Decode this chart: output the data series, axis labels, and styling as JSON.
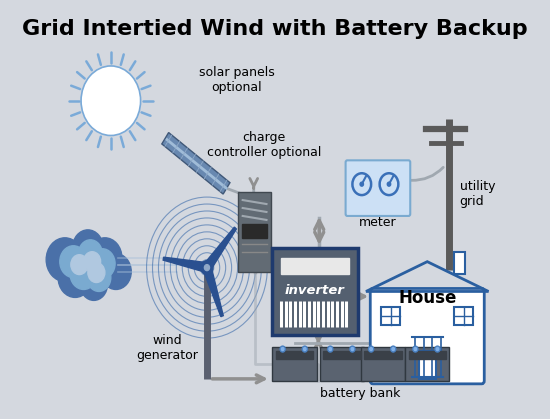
{
  "title": "Grid Intertied Wind with Battery Backup",
  "title_fontsize": 16,
  "bg_color": "#d4d8df",
  "text_color": "#000000",
  "cc": {
    "charge_controller": "#626b74",
    "charge_controller_dark": "#2a2a2a",
    "inverter_box": "#546070",
    "inverter_border": "#1e3a6e",
    "inverter_screen": "#e8e8e8",
    "meter_box": "#cce0f5",
    "meter_border": "#7aaad0",
    "battery": "#5a6370",
    "battery_dark": "#3a4048",
    "arrow": "#909090",
    "arrow_fill": "#909090",
    "house_outline": "#2a5fa0",
    "house_fill": "#ffffff",
    "sun_fill": "#ffffff",
    "sun_rays": "#7aaad8",
    "sun_outline": "#7aaad8",
    "solar_panel_main": "#6888b0",
    "solar_panel_light": "#a0bcd8",
    "solar_panel_frame": "#c0c8d0",
    "wind_blade": "#2a5090",
    "wind_circle": "#3a6aaa",
    "cloud_dark": "#4a70a8",
    "cloud_mid": "#7aaad0",
    "cloud_light": "#b0c8e0",
    "utility_pole": "#5a5a5a",
    "wire": "#a0a8b0"
  },
  "labels": {
    "solar": "solar panels\noptional",
    "charge": "charge\ncontroller optional",
    "wind": "wind\ngenerator",
    "battery": "battery bank",
    "inverter": "inverter",
    "meter": "meter",
    "utility": "utility\ngrid",
    "house": "House"
  }
}
